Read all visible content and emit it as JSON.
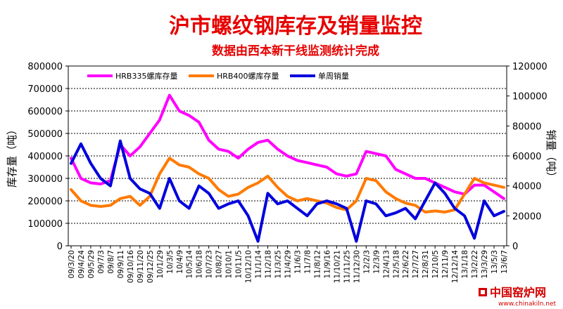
{
  "chart_data": {
    "type": "line",
    "title": "沪市螺纹钢库存及销量监控",
    "subtitle": "数据由西本新干线监测统计完成",
    "ylabel_left": "库存量（吨）",
    "ylabel_right": "销量（吨）",
    "ylim_left": [
      0,
      800000
    ],
    "ylim_right": [
      0,
      120000
    ],
    "yticks_left": [
      "0",
      "100000",
      "200000",
      "300000",
      "400000",
      "500000",
      "600000",
      "700000",
      "800000"
    ],
    "yticks_right": [
      "0",
      "20000",
      "40000",
      "60000",
      "80000",
      "100000",
      "120000"
    ],
    "legend_position": "top",
    "grid": "horizontal-dashed",
    "categories": [
      "09/3/20",
      "09/4/24",
      "09/5/29",
      "09/7/3",
      "09/8/7",
      "09/9/11",
      "09/10/16",
      "09/11/20",
      "09/12/25",
      "10/1/29",
      "10/3/5",
      "10/4/9",
      "10/5/14",
      "10/6/18",
      "10/7/23",
      "10/8/27",
      "10/10/1",
      "10/11/5",
      "10/12/10",
      "11/1/14",
      "11/2/18",
      "11/3/25",
      "11/4/29",
      "11/6/3",
      "11/7/8",
      "11/8/12",
      "11/9/16",
      "11/10/21",
      "11/11/25",
      "11/12/30",
      "12/2/3",
      "12/3/9",
      "12/4/13",
      "12/5/18",
      "12/6/22",
      "12/7/27",
      "12/8/31",
      "12/10/5",
      "12/11/9",
      "12/12/14",
      "13/1/18",
      "13/2/22",
      "13/3/29",
      "13/5/3",
      "13/6/7"
    ],
    "series": [
      {
        "name": "HRB335螺库存量",
        "axis": "left",
        "color": "#ff00ff",
        "values": [
          390000,
          300000,
          280000,
          275000,
          290000,
          450000,
          400000,
          440000,
          500000,
          560000,
          670000,
          600000,
          580000,
          550000,
          470000,
          430000,
          420000,
          390000,
          430000,
          460000,
          470000,
          430000,
          400000,
          380000,
          370000,
          360000,
          350000,
          320000,
          310000,
          320000,
          420000,
          410000,
          400000,
          340000,
          320000,
          300000,
          300000,
          280000,
          260000,
          240000,
          230000,
          270000,
          270000,
          240000,
          210000
        ]
      },
      {
        "name": "HRB400螺库存量",
        "axis": "left",
        "color": "#ff7a00",
        "values": [
          250000,
          200000,
          180000,
          175000,
          180000,
          210000,
          220000,
          180000,
          220000,
          320000,
          390000,
          360000,
          350000,
          320000,
          300000,
          250000,
          220000,
          230000,
          260000,
          280000,
          310000,
          260000,
          220000,
          200000,
          210000,
          200000,
          190000,
          170000,
          160000,
          200000,
          300000,
          290000,
          240000,
          210000,
          190000,
          180000,
          150000,
          155000,
          150000,
          160000,
          230000,
          300000,
          280000,
          270000,
          260000
        ]
      },
      {
        "name": "单周销量",
        "axis": "right",
        "color": "#0000dd",
        "values": [
          55000,
          68000,
          55000,
          45000,
          40000,
          70000,
          45000,
          38000,
          35000,
          25000,
          45000,
          30000,
          25000,
          40000,
          35000,
          25000,
          28000,
          30000,
          20000,
          3000,
          35000,
          28000,
          30000,
          25000,
          20000,
          28000,
          30000,
          28000,
          25000,
          3000,
          30000,
          28000,
          20000,
          22000,
          25000,
          18000,
          30000,
          42000,
          35000,
          25000,
          20000,
          5000,
          30000,
          20000,
          23000
        ]
      }
    ]
  },
  "watermark": {
    "brand": "中国窑炉网",
    "url": "www.chinakiln.net"
  }
}
